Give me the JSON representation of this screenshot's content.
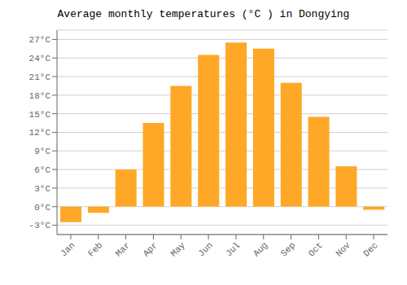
{
  "chart_data": {
    "type": "bar",
    "title": "Average monthly temperatures (°C ) in Dongying",
    "categories": [
      "Jan",
      "Feb",
      "Mar",
      "Apr",
      "May",
      "Jun",
      "Jul",
      "Aug",
      "Sep",
      "Oct",
      "Nov",
      "Dec"
    ],
    "values": [
      -2.5,
      -1.0,
      6.0,
      13.5,
      19.5,
      24.5,
      26.5,
      25.5,
      20.0,
      14.5,
      6.5,
      -0.5
    ],
    "color": "#FFA726",
    "ylim": [
      -4.5,
      28.5
    ],
    "yticks": [
      {
        "value": -3,
        "label": "-3°C"
      },
      {
        "value": 0,
        "label": "0°C"
      },
      {
        "value": 3,
        "label": "3°C"
      },
      {
        "value": 6,
        "label": "6°C"
      },
      {
        "value": 9,
        "label": "9°C"
      },
      {
        "value": 12,
        "label": "12°C"
      },
      {
        "value": 15,
        "label": "15°C"
      },
      {
        "value": 18,
        "label": "18°C"
      },
      {
        "value": 21,
        "label": "21°C"
      },
      {
        "value": 24,
        "label": "24°C"
      },
      {
        "value": 27,
        "label": "27°C"
      }
    ],
    "grid": true
  }
}
